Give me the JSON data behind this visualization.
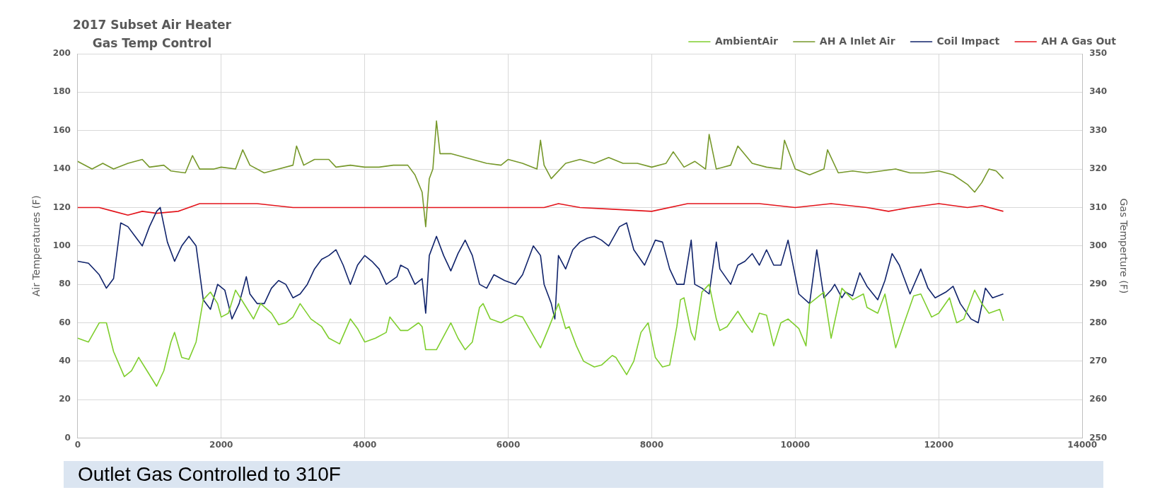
{
  "chart_data": {
    "type": "line",
    "title": "2017 Subset Air Heater Gas Temp Control",
    "ylabel": "Air Temperatures (F)",
    "y2label": "Gas Temperture (F)",
    "annotations": [
      "Outlet Gas Controlled to 310F"
    ],
    "xlim": [
      0,
      14000
    ],
    "xticks": [
      0,
      2000,
      4000,
      6000,
      8000,
      10000,
      12000,
      14000
    ],
    "ylim": [
      0,
      200
    ],
    "yticks": [
      0,
      20,
      40,
      60,
      80,
      100,
      120,
      140,
      160,
      180,
      200
    ],
    "y2lim": [
      250,
      350
    ],
    "y2ticks": [
      250,
      260,
      270,
      280,
      290,
      300,
      310,
      320,
      330,
      340,
      350
    ],
    "grid": true,
    "legend": "top right",
    "marker": "none",
    "line_style": "solid",
    "series": [
      {
        "name": "AmbientAir",
        "color": "#7fce2e",
        "x": [
          0,
          150,
          300,
          400,
          500,
          650,
          750,
          850,
          950,
          1100,
          1200,
          1300,
          1350,
          1450,
          1550,
          1650,
          1750,
          1850,
          1950,
          2000,
          2100,
          2200,
          2350,
          2450,
          2550,
          2700,
          2800,
          2900,
          3000,
          3100,
          3250,
          3400,
          3500,
          3650,
          3800,
          3900,
          4000,
          4150,
          4300,
          4350,
          4500,
          4600,
          4750,
          4800,
          4850,
          5000,
          5100,
          5200,
          5300,
          5400,
          5500,
          5600,
          5650,
          5750,
          5900,
          6100,
          6200,
          6400,
          6450,
          6550,
          6700,
          6800,
          6850,
          6950,
          7050,
          7200,
          7300,
          7450,
          7500,
          7650,
          7750,
          7850,
          7950,
          8050,
          8150,
          8250,
          8350,
          8400,
          8450,
          8550,
          8600,
          8700,
          8800,
          8900,
          8950,
          9050,
          9200,
          9300,
          9400,
          9500,
          9600,
          9700,
          9800,
          9900,
          10050,
          10150,
          10200,
          10400,
          10500,
          10650,
          10800,
          10950,
          11000,
          11150,
          11250,
          11400,
          11500,
          11650,
          11750,
          11900,
          12000,
          12150,
          12250,
          12350,
          12500,
          12600,
          12700,
          12850,
          12900
        ],
        "values": [
          52,
          50,
          60,
          60,
          45,
          32,
          35,
          42,
          36,
          27,
          35,
          50,
          55,
          42,
          41,
          50,
          72,
          76,
          70,
          63,
          65,
          77,
          68,
          62,
          70,
          65,
          59,
          60,
          63,
          70,
          62,
          58,
          52,
          49,
          62,
          57,
          50,
          52,
          55,
          63,
          56,
          56,
          60,
          58,
          46,
          46,
          53,
          60,
          52,
          46,
          50,
          68,
          70,
          62,
          60,
          64,
          63,
          50,
          47,
          56,
          70,
          57,
          58,
          48,
          40,
          37,
          38,
          43,
          42,
          33,
          40,
          55,
          60,
          42,
          37,
          38,
          58,
          72,
          73,
          55,
          51,
          76,
          80,
          62,
          56,
          58,
          66,
          60,
          55,
          65,
          64,
          48,
          60,
          62,
          57,
          48,
          70,
          76,
          52,
          78,
          72,
          75,
          68,
          65,
          75,
          47,
          58,
          74,
          75,
          63,
          65,
          73,
          60,
          62,
          77,
          70,
          65,
          67,
          61
        ]
      },
      {
        "name": "AH A Inlet Air",
        "color": "#76982a",
        "x": [
          0,
          200,
          350,
          500,
          700,
          900,
          1000,
          1200,
          1300,
          1500,
          1600,
          1700,
          1900,
          2000,
          2200,
          2300,
          2400,
          2600,
          2800,
          3000,
          3050,
          3150,
          3300,
          3500,
          3600,
          3800,
          4000,
          4200,
          4400,
          4600,
          4700,
          4800,
          4850,
          4900,
          4950,
          5000,
          5050,
          5200,
          5500,
          5700,
          5900,
          6000,
          6200,
          6400,
          6450,
          6500,
          6600,
          6800,
          7000,
          7200,
          7400,
          7600,
          7800,
          8000,
          8200,
          8300,
          8450,
          8600,
          8750,
          8800,
          8900,
          9100,
          9200,
          9400,
          9600,
          9800,
          9850,
          10000,
          10200,
          10400,
          10450,
          10600,
          10800,
          11000,
          11200,
          11400,
          11600,
          11800,
          12000,
          12200,
          12400,
          12500,
          12600,
          12700,
          12800,
          12900
        ],
        "values": [
          144,
          140,
          143,
          140,
          143,
          145,
          141,
          142,
          139,
          138,
          147,
          140,
          140,
          141,
          140,
          150,
          142,
          138,
          140,
          142,
          152,
          142,
          145,
          145,
          141,
          142,
          141,
          141,
          142,
          142,
          137,
          128,
          110,
          135,
          140,
          165,
          148,
          148,
          145,
          143,
          142,
          145,
          143,
          140,
          155,
          142,
          135,
          143,
          145,
          143,
          146,
          143,
          143,
          141,
          143,
          149,
          141,
          144,
          140,
          158,
          140,
          142,
          152,
          143,
          141,
          140,
          155,
          140,
          137,
          140,
          150,
          138,
          139,
          138,
          139,
          140,
          138,
          138,
          139,
          137,
          132,
          128,
          133,
          140,
          139,
          135
        ]
      },
      {
        "name": "Coil Impact",
        "color": "#10236b",
        "x": [
          0,
          150,
          300,
          400,
          500,
          600,
          700,
          800,
          900,
          1000,
          1100,
          1150,
          1250,
          1350,
          1450,
          1550,
          1650,
          1750,
          1850,
          1950,
          2050,
          2150,
          2250,
          2350,
          2400,
          2500,
          2600,
          2700,
          2800,
          2900,
          3000,
          3100,
          3200,
          3300,
          3400,
          3500,
          3600,
          3700,
          3800,
          3900,
          4000,
          4100,
          4200,
          4300,
          4450,
          4500,
          4600,
          4700,
          4800,
          4850,
          4900,
          5000,
          5100,
          5200,
          5300,
          5400,
          5500,
          5600,
          5700,
          5800,
          5950,
          6100,
          6200,
          6350,
          6450,
          6500,
          6600,
          6650,
          6700,
          6800,
          6900,
          7000,
          7100,
          7200,
          7300,
          7400,
          7550,
          7650,
          7750,
          7900,
          8050,
          8150,
          8250,
          8350,
          8450,
          8550,
          8600,
          8700,
          8800,
          8900,
          8950,
          9100,
          9200,
          9300,
          9400,
          9500,
          9600,
          9700,
          9800,
          9900,
          10050,
          10200,
          10300,
          10400,
          10500,
          10550,
          10650,
          10700,
          10800,
          10900,
          11000,
          11150,
          11250,
          11350,
          11450,
          11600,
          11750,
          11850,
          11950,
          12100,
          12200,
          12300,
          12450,
          12550,
          12650,
          12750,
          12900
        ],
        "values": [
          92,
          91,
          85,
          78,
          83,
          112,
          110,
          105,
          100,
          110,
          118,
          120,
          102,
          92,
          100,
          105,
          100,
          72,
          67,
          80,
          77,
          62,
          70,
          84,
          75,
          70,
          70,
          78,
          82,
          80,
          73,
          75,
          80,
          88,
          93,
          95,
          98,
          90,
          80,
          90,
          95,
          92,
          88,
          80,
          84,
          90,
          88,
          80,
          83,
          65,
          95,
          105,
          95,
          87,
          96,
          103,
          95,
          80,
          78,
          85,
          82,
          80,
          85,
          100,
          95,
          80,
          70,
          62,
          95,
          88,
          98,
          102,
          104,
          105,
          103,
          100,
          110,
          112,
          98,
          90,
          103,
          102,
          88,
          80,
          80,
          103,
          80,
          78,
          75,
          102,
          88,
          80,
          90,
          92,
          96,
          90,
          98,
          90,
          90,
          103,
          75,
          70,
          98,
          73,
          77,
          80,
          73,
          76,
          74,
          86,
          79,
          72,
          82,
          96,
          90,
          75,
          88,
          78,
          73,
          76,
          79,
          70,
          62,
          60,
          78,
          73,
          75
        ]
      },
      {
        "name": "AH A Gas Out",
        "color": "#e3141b",
        "axis": "y2",
        "x": [
          0,
          300,
          500,
          700,
          900,
          1100,
          1400,
          1700,
          2000,
          2500,
          3000,
          3500,
          4000,
          4500,
          5000,
          5500,
          6000,
          6500,
          6700,
          7000,
          7500,
          8000,
          8500,
          9000,
          9500,
          10000,
          10500,
          11000,
          11300,
          11600,
          12000,
          12400,
          12600,
          12900
        ],
        "values": [
          310,
          310,
          309,
          308,
          309,
          308.5,
          309,
          311,
          311,
          311,
          310,
          310,
          310,
          310,
          310,
          310,
          310,
          310,
          311,
          310,
          309.5,
          309,
          311,
          311,
          311,
          310,
          311,
          310,
          309,
          310,
          311,
          310,
          310.5,
          309
        ]
      }
    ]
  }
}
